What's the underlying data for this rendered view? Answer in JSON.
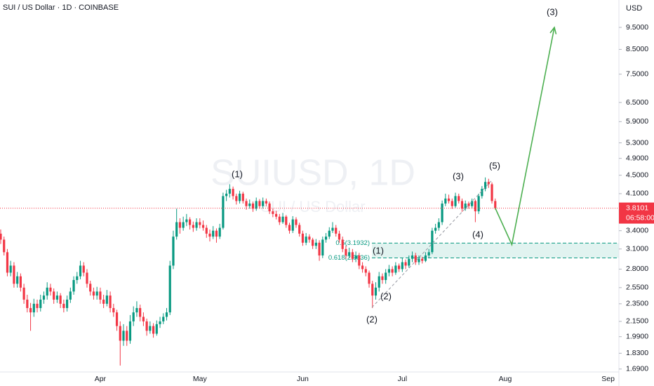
{
  "chart_data": {
    "type": "candlestick",
    "title": "SUI / US Dollar · 1D · COINBASE",
    "currency": "USD",
    "watermark": {
      "symbol": "SUIUSD, 1D",
      "description": "SUI / US Dollar"
    },
    "up_color": "#089981",
    "down_color": "#f23645",
    "log_scale": true,
    "grid": false,
    "ylim": [
      1.607,
      10.91
    ],
    "yticks": [
      {
        "value": 9.5,
        "label": "9.5000"
      },
      {
        "value": 8.5,
        "label": "8.5000"
      },
      {
        "value": 7.5,
        "label": "7.5000"
      },
      {
        "value": 6.5,
        "label": "6.5000"
      },
      {
        "value": 5.9,
        "label": "5.9000"
      },
      {
        "value": 5.3,
        "label": "5.3000"
      },
      {
        "value": 4.9,
        "label": "4.9000"
      },
      {
        "value": 4.5,
        "label": "4.5000"
      },
      {
        "value": 4.1,
        "label": "4.1000"
      },
      {
        "value": 3.4,
        "label": "3.4000"
      },
      {
        "value": 3.1,
        "label": "3.1000"
      },
      {
        "value": 2.8,
        "label": "2.8000"
      },
      {
        "value": 2.55,
        "label": "2.5500"
      },
      {
        "value": 2.35,
        "label": "2.3500"
      },
      {
        "value": 2.15,
        "label": "2.1500"
      },
      {
        "value": 1.99,
        "label": "1.9900"
      },
      {
        "value": 1.83,
        "label": "1.8300"
      },
      {
        "value": 1.69,
        "label": "1.6900"
      }
    ],
    "categories": [
      null,
      null,
      null,
      null,
      null,
      null,
      null,
      null,
      null,
      null,
      null,
      null,
      null,
      null,
      null,
      null,
      null,
      null,
      null,
      null,
      null,
      null,
      null,
      null,
      null,
      null,
      null,
      null,
      null,
      null,
      "Apr",
      null,
      null,
      null,
      null,
      null,
      null,
      null,
      null,
      null,
      null,
      null,
      null,
      null,
      null,
      null,
      null,
      null,
      null,
      null,
      null,
      null,
      null,
      null,
      null,
      null,
      null,
      null,
      null,
      null,
      "May",
      null,
      null,
      null,
      null,
      null,
      null,
      null,
      null,
      null,
      null,
      null,
      null,
      null,
      null,
      null,
      null,
      null,
      null,
      null,
      null,
      null,
      null,
      null,
      null,
      null,
      null,
      null,
      null,
      null,
      null,
      "Jun",
      null,
      null,
      null,
      null,
      null,
      null,
      null,
      null,
      null,
      null,
      null,
      null,
      null,
      null,
      null,
      null,
      null,
      null,
      null,
      null,
      null,
      null,
      null,
      null,
      null,
      null,
      null,
      null,
      null,
      "Jul",
      null,
      null,
      null,
      null,
      null,
      null,
      null,
      null,
      null,
      null,
      null,
      null,
      null,
      null,
      null,
      null,
      null,
      null,
      null,
      null,
      null,
      null,
      null,
      null,
      null,
      null,
      null,
      null,
      null,
      null,
      "Aug",
      null,
      null,
      null,
      null,
      null,
      null,
      null,
      null,
      null,
      null,
      null,
      null,
      null,
      null,
      null,
      null,
      null,
      null,
      null,
      null,
      null,
      null,
      null,
      null,
      null,
      null,
      null,
      null,
      null,
      null,
      "Sep"
    ],
    "ohlc": [
      [
        3.35,
        3.42,
        3.18,
        3.25
      ],
      [
        3.25,
        3.3,
        3.0,
        3.05
      ],
      [
        3.05,
        3.1,
        2.7,
        2.75
      ],
      [
        2.75,
        2.92,
        2.7,
        2.85
      ],
      [
        2.85,
        2.9,
        2.55,
        2.6
      ],
      [
        2.6,
        2.76,
        2.55,
        2.7
      ],
      [
        2.7,
        2.74,
        2.5,
        2.55
      ],
      [
        2.55,
        2.6,
        2.35,
        2.4
      ],
      [
        2.4,
        2.46,
        2.25,
        2.3
      ],
      [
        2.3,
        2.36,
        2.05,
        2.25
      ],
      [
        2.25,
        2.41,
        2.2,
        2.35
      ],
      [
        2.35,
        2.4,
        2.25,
        2.3
      ],
      [
        2.3,
        2.46,
        2.26,
        2.4
      ],
      [
        2.4,
        2.5,
        2.35,
        2.45
      ],
      [
        2.45,
        2.62,
        2.4,
        2.55
      ],
      [
        2.55,
        2.6,
        2.45,
        2.5
      ],
      [
        2.5,
        2.54,
        2.35,
        2.4
      ],
      [
        2.4,
        2.5,
        2.36,
        2.45
      ],
      [
        2.45,
        2.48,
        2.3,
        2.35
      ],
      [
        2.35,
        2.4,
        2.25,
        2.3
      ],
      [
        2.3,
        2.45,
        2.26,
        2.4
      ],
      [
        2.4,
        2.55,
        2.36,
        2.5
      ],
      [
        2.5,
        2.7,
        2.46,
        2.65
      ],
      [
        2.65,
        2.76,
        2.6,
        2.7
      ],
      [
        2.7,
        2.92,
        2.66,
        2.85
      ],
      [
        2.85,
        2.9,
        2.7,
        2.75
      ],
      [
        2.75,
        2.8,
        2.55,
        2.6
      ],
      [
        2.6,
        2.64,
        2.45,
        2.5
      ],
      [
        2.5,
        2.55,
        2.4,
        2.45
      ],
      [
        2.45,
        2.56,
        2.4,
        2.5
      ],
      [
        2.5,
        2.55,
        2.35,
        2.4
      ],
      [
        2.4,
        2.46,
        2.3,
        2.35
      ],
      [
        2.35,
        2.52,
        2.32,
        2.45
      ],
      [
        2.45,
        2.5,
        2.25,
        2.3
      ],
      [
        2.3,
        2.35,
        2.2,
        2.25
      ],
      [
        2.25,
        2.28,
        2.05,
        2.1
      ],
      [
        2.1,
        2.15,
        1.72,
        1.95
      ],
      [
        1.95,
        2.12,
        1.9,
        2.05
      ],
      [
        2.05,
        2.1,
        1.9,
        1.95
      ],
      [
        1.95,
        2.22,
        1.92,
        2.15
      ],
      [
        2.15,
        2.32,
        2.1,
        2.25
      ],
      [
        2.25,
        2.38,
        2.2,
        2.3
      ],
      [
        2.3,
        2.34,
        2.15,
        2.2
      ],
      [
        2.2,
        2.25,
        2.1,
        2.15
      ],
      [
        2.15,
        2.18,
        2.0,
        2.05
      ],
      [
        2.05,
        2.15,
        2.02,
        2.1
      ],
      [
        2.1,
        2.13,
        1.98,
        2.02
      ],
      [
        2.02,
        2.16,
        2.0,
        2.12
      ],
      [
        2.12,
        2.2,
        2.08,
        2.15
      ],
      [
        2.15,
        2.24,
        2.12,
        2.2
      ],
      [
        2.2,
        2.3,
        2.16,
        2.25
      ],
      [
        2.25,
        2.92,
        2.22,
        2.85
      ],
      [
        2.85,
        3.4,
        2.8,
        3.3
      ],
      [
        3.3,
        3.8,
        3.25,
        3.55
      ],
      [
        3.55,
        3.62,
        3.35,
        3.45
      ],
      [
        3.45,
        3.65,
        3.4,
        3.55
      ],
      [
        3.55,
        3.7,
        3.48,
        3.6
      ],
      [
        3.6,
        3.64,
        3.42,
        3.5
      ],
      [
        3.5,
        3.56,
        3.38,
        3.45
      ],
      [
        3.45,
        3.62,
        3.4,
        3.55
      ],
      [
        3.55,
        3.62,
        3.44,
        3.5
      ],
      [
        3.5,
        3.58,
        3.4,
        3.45
      ],
      [
        3.45,
        3.5,
        3.28,
        3.35
      ],
      [
        3.35,
        3.42,
        3.22,
        3.3
      ],
      [
        3.3,
        3.48,
        3.26,
        3.4
      ],
      [
        3.4,
        3.44,
        3.2,
        3.3
      ],
      [
        3.3,
        3.52,
        3.26,
        3.45
      ],
      [
        3.45,
        4.12,
        3.42,
        4.05
      ],
      [
        4.05,
        4.18,
        3.95,
        4.1
      ],
      [
        4.1,
        4.3,
        4.02,
        4.2
      ],
      [
        4.2,
        4.25,
        3.98,
        4.05
      ],
      [
        4.05,
        4.1,
        3.88,
        3.95
      ],
      [
        3.95,
        4.16,
        3.9,
        4.1
      ],
      [
        4.1,
        4.14,
        3.9,
        3.95
      ],
      [
        3.95,
        4.0,
        3.78,
        3.85
      ],
      [
        3.85,
        3.98,
        3.8,
        3.9
      ],
      [
        3.9,
        3.94,
        3.74,
        3.8
      ],
      [
        3.8,
        4.02,
        3.76,
        3.95
      ],
      [
        3.95,
        3.99,
        3.8,
        3.85
      ],
      [
        3.85,
        4.02,
        3.8,
        3.95
      ],
      [
        3.95,
        4.0,
        3.85,
        3.9
      ],
      [
        3.9,
        3.94,
        3.7,
        3.75
      ],
      [
        3.75,
        3.8,
        3.64,
        3.7
      ],
      [
        3.7,
        3.76,
        3.6,
        3.65
      ],
      [
        3.65,
        3.7,
        3.5,
        3.55
      ],
      [
        3.55,
        3.72,
        3.52,
        3.65
      ],
      [
        3.65,
        3.68,
        3.45,
        3.5
      ],
      [
        3.5,
        3.54,
        3.35,
        3.4
      ],
      [
        3.4,
        3.66,
        3.36,
        3.6
      ],
      [
        3.6,
        3.64,
        3.45,
        3.5
      ],
      [
        3.5,
        3.54,
        3.3,
        3.35
      ],
      [
        3.35,
        3.4,
        3.15,
        3.2
      ],
      [
        3.2,
        3.36,
        3.16,
        3.3
      ],
      [
        3.3,
        3.34,
        3.2,
        3.25
      ],
      [
        3.25,
        3.28,
        3.1,
        3.15
      ],
      [
        3.15,
        3.26,
        3.1,
        3.2
      ],
      [
        3.2,
        3.24,
        2.92,
        3.0
      ],
      [
        3.0,
        3.3,
        2.96,
        3.25
      ],
      [
        3.25,
        3.36,
        3.2,
        3.3
      ],
      [
        3.3,
        3.46,
        3.26,
        3.4
      ],
      [
        3.4,
        3.55,
        3.36,
        3.45
      ],
      [
        3.45,
        3.5,
        3.3,
        3.35
      ],
      [
        3.35,
        3.4,
        3.2,
        3.25
      ],
      [
        3.25,
        3.3,
        3.05,
        3.1
      ],
      [
        3.1,
        3.15,
        2.95,
        3.0
      ],
      [
        3.0,
        3.12,
        2.96,
        3.05
      ],
      [
        3.05,
        3.1,
        2.9,
        2.95
      ],
      [
        2.95,
        3.06,
        2.9,
        3.0
      ],
      [
        3.0,
        3.04,
        2.8,
        2.85
      ],
      [
        2.85,
        2.9,
        2.75,
        2.8
      ],
      [
        2.8,
        2.84,
        2.7,
        2.75
      ],
      [
        2.75,
        2.78,
        2.55,
        2.6
      ],
      [
        2.6,
        2.64,
        2.3,
        2.45
      ],
      [
        2.45,
        2.62,
        2.4,
        2.55
      ],
      [
        2.55,
        2.76,
        2.5,
        2.7
      ],
      [
        2.7,
        2.74,
        2.6,
        2.65
      ],
      [
        2.65,
        2.8,
        2.6,
        2.75
      ],
      [
        2.75,
        2.86,
        2.7,
        2.8
      ],
      [
        2.8,
        2.84,
        2.7,
        2.75
      ],
      [
        2.75,
        2.9,
        2.72,
        2.85
      ],
      [
        2.85,
        2.88,
        2.76,
        2.8
      ],
      [
        2.8,
        2.96,
        2.76,
        2.9
      ],
      [
        2.9,
        2.94,
        2.8,
        2.85
      ],
      [
        2.85,
        3.0,
        2.82,
        2.95
      ],
      [
        2.95,
        3.06,
        2.9,
        3.0
      ],
      [
        3.0,
        3.04,
        2.86,
        2.9
      ],
      [
        2.9,
        3.0,
        2.86,
        2.95
      ],
      [
        2.95,
        2.98,
        2.88,
        2.92
      ],
      [
        2.92,
        3.05,
        2.9,
        3.0
      ],
      [
        3.0,
        3.1,
        2.96,
        3.05
      ],
      [
        3.05,
        3.45,
        3.02,
        3.4
      ],
      [
        3.4,
        3.52,
        3.35,
        3.45
      ],
      [
        3.45,
        3.62,
        3.4,
        3.55
      ],
      [
        3.55,
        3.96,
        3.5,
        3.9
      ],
      [
        3.9,
        4.1,
        3.85,
        4.0
      ],
      [
        4.0,
        4.08,
        3.9,
        3.95
      ],
      [
        3.95,
        4.0,
        3.8,
        3.85
      ],
      [
        3.85,
        4.12,
        3.82,
        4.05
      ],
      [
        4.05,
        4.1,
        3.9,
        3.95
      ],
      [
        3.95,
        4.0,
        3.74,
        3.8
      ],
      [
        3.8,
        3.96,
        3.76,
        3.9
      ],
      [
        3.9,
        3.94,
        3.8,
        3.85
      ],
      [
        3.85,
        4.0,
        3.8,
        3.95
      ],
      [
        3.95,
        3.98,
        3.55,
        3.75
      ],
      [
        3.75,
        4.1,
        3.7,
        4.05
      ],
      [
        4.05,
        4.26,
        4.0,
        4.2
      ],
      [
        4.2,
        4.45,
        4.15,
        4.35
      ],
      [
        4.35,
        4.42,
        4.22,
        4.3
      ],
      [
        4.3,
        4.34,
        3.9,
        3.95
      ],
      [
        3.95,
        4.0,
        3.78,
        3.8101
      ],
      null,
      null,
      null,
      null,
      null,
      null,
      null,
      null,
      null,
      null,
      null,
      null,
      null,
      null,
      null,
      null,
      null,
      null,
      null,
      null,
      null,
      null,
      null,
      null,
      null,
      null,
      null,
      null,
      null,
      null,
      null,
      null,
      null,
      null
    ],
    "countdown": "06:58:00",
    "fib": [
      {
        "value": 3.1932,
        "label": "0.5(3.1932)"
      },
      {
        "value": 2.9636,
        "label": "0.618(2.9636)"
      }
    ],
    "projection": [
      3.81,
      3.17,
      9.5
    ],
    "projection_color": "#4caf50",
    "waves": [
      "(1)",
      "(3)",
      "(5)",
      "(4)",
      "(1)",
      "(2)",
      "(2)",
      "(3)"
    ]
  }
}
